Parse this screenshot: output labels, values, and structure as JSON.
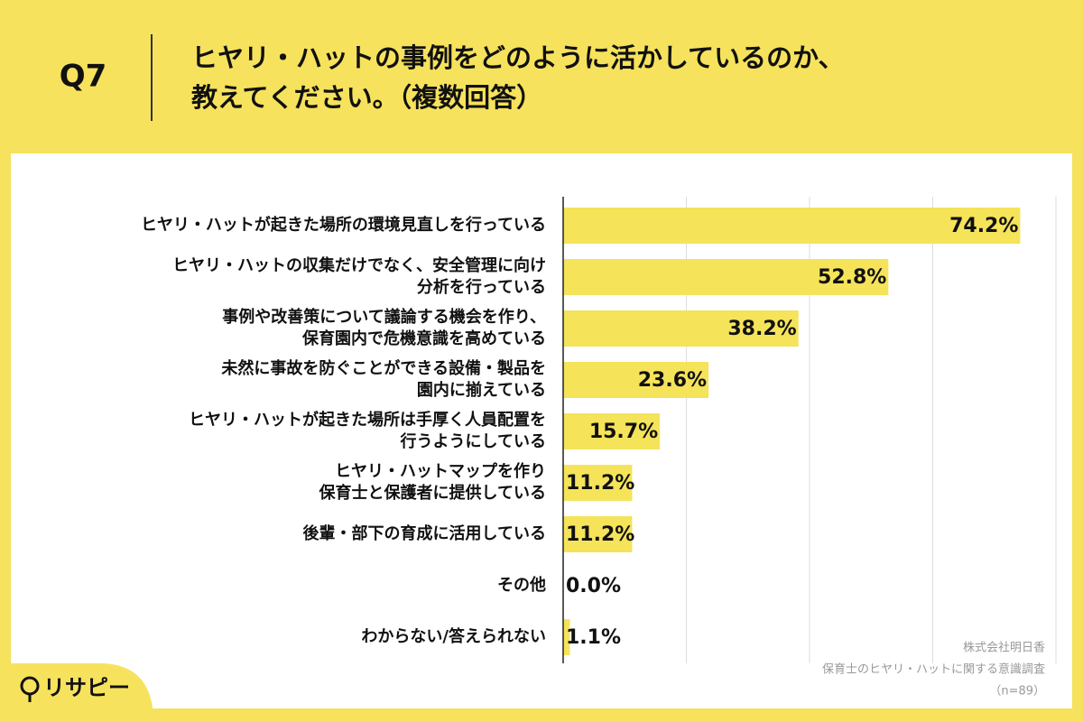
{
  "question": "Q7",
  "chart_data": {
    "type": "hbar",
    "title": "ヒヤリ・ハットの事例をどのように活かしているのか、\n教えてください。（複数回答）",
    "categories": [
      "ヒヤリ・ハットが起きた場所の環境見直しを行っている",
      "ヒヤリ・ハットの収集だけでなく、安全管理に向け\n分析を行っている",
      "事例や改善策について議論する機会を作り、\n保育園内で危機意識を高めている",
      "未然に事故を防ぐことができる設備・製品を\n園内に揃えている",
      "ヒヤリ・ハットが起きた場所は手厚く人員配置を\n行うようにしている",
      "ヒヤリ・ハットマップを作り\n保育士と保護者に提供している",
      "後輩・部下の育成に活用している",
      "その他",
      "わからない/答えられない"
    ],
    "values": [
      74.2,
      52.8,
      38.2,
      23.6,
      15.7,
      11.2,
      11.2,
      0.0,
      1.1
    ],
    "value_labels": [
      "74.2%",
      "52.8%",
      "38.2%",
      "23.6%",
      "15.7%",
      "11.2%",
      "11.2%",
      "0.0%",
      "1.1%"
    ],
    "color": "#f5e35a",
    "xlim": [
      0,
      80
    ],
    "xticks": [
      0,
      20,
      40,
      60,
      80
    ],
    "grid": true,
    "source": [
      "株式会社明日香",
      "保育士のヒヤリ・ハットに関する意識調査",
      "（n=89）"
    ]
  },
  "logo": "リサピー"
}
